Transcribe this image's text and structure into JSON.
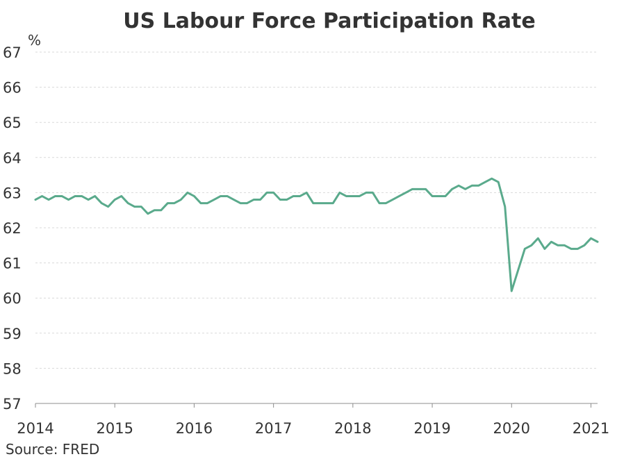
{
  "chart_data": {
    "type": "line",
    "title": "US Labour Force Participation Rate",
    "ylabel": "%",
    "xlabel": "",
    "source": "Source: FRED",
    "ylim": [
      57,
      67
    ],
    "xlim": [
      "2014-01",
      "2021-02"
    ],
    "grid": true,
    "x_ticks": [
      "2014",
      "2015",
      "2016",
      "2017",
      "2018",
      "2019",
      "2020",
      "2021"
    ],
    "y_ticks": [
      "57",
      "58",
      "59",
      "60",
      "61",
      "62",
      "63",
      "64",
      "65",
      "66",
      "67"
    ],
    "line_color": "#5aaa8c",
    "series": [
      {
        "start_month": "2014-01",
        "frequency": "monthly",
        "values": [
          62.8,
          62.9,
          62.8,
          62.9,
          62.9,
          62.8,
          62.9,
          62.9,
          62.8,
          62.9,
          62.7,
          62.6,
          62.8,
          62.9,
          62.7,
          62.6,
          62.6,
          62.4,
          62.5,
          62.5,
          62.7,
          62.7,
          62.8,
          63.0,
          62.9,
          62.7,
          62.7,
          62.8,
          62.9,
          62.9,
          62.8,
          62.7,
          62.7,
          62.8,
          62.8,
          63.0,
          63.0,
          62.8,
          62.8,
          62.9,
          62.9,
          63.0,
          62.7,
          62.7,
          62.7,
          62.7,
          63.0,
          62.9,
          62.9,
          62.9,
          63.0,
          63.0,
          62.7,
          62.7,
          62.8,
          62.9,
          63.0,
          63.1,
          63.1,
          63.1,
          62.9,
          62.9,
          62.9,
          63.1,
          63.2,
          63.1,
          63.2,
          63.2,
          63.3,
          63.4,
          63.3,
          62.6,
          60.2,
          60.8,
          61.4,
          61.5,
          61.7,
          61.4,
          61.6,
          61.5,
          61.5,
          61.4,
          61.4,
          61.5,
          61.7,
          61.6
        ]
      }
    ]
  }
}
